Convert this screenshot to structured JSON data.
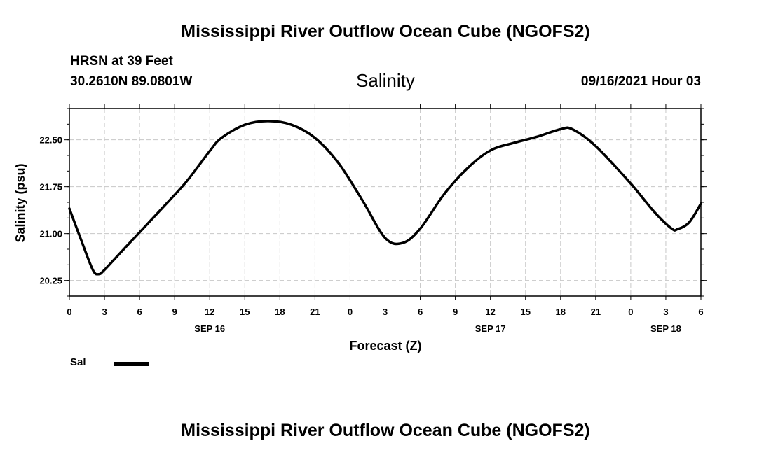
{
  "header": {
    "title_top": "Mississippi River Outflow Ocean Cube (NGOFS2)",
    "station": "HRSN at 39 Feet",
    "coords": "30.2610N  89.0801W",
    "variable": "Salinity",
    "timestamp": "09/16/2021 Hour 03",
    "title_bottom": "Mississippi River Outflow Ocean Cube (NGOFS2)"
  },
  "legend": {
    "label": "Sal",
    "color": "#000000"
  },
  "chart_data": {
    "type": "line",
    "title": "Salinity",
    "xlabel": "Forecast (Z)",
    "ylabel": "Salinity (psu)",
    "x_unit": "hours from SEP 16 00Z",
    "xlim": [
      0,
      54
    ],
    "ylim": [
      20.0,
      23.0
    ],
    "grid": true,
    "x_tick_values": [
      0,
      3,
      6,
      9,
      12,
      15,
      18,
      21,
      24,
      27,
      30,
      33,
      36,
      39,
      42,
      45,
      48,
      51,
      54
    ],
    "x_tick_labels": [
      "0",
      "3",
      "6",
      "9",
      "12",
      "15",
      "18",
      "21",
      "0",
      "3",
      "6",
      "9",
      "12",
      "15",
      "18",
      "21",
      "0",
      "3",
      "6"
    ],
    "date_labels": [
      {
        "hour": 12,
        "label": "SEP 16"
      },
      {
        "hour": 36,
        "label": "SEP 17"
      },
      {
        "hour": 51,
        "label": "SEP 18"
      }
    ],
    "y_tick_values": [
      20.25,
      21.0,
      21.75,
      22.5
    ],
    "y_tick_labels": [
      "20.25",
      "21.00",
      "21.75",
      "22.50"
    ],
    "series": [
      {
        "name": "Sal",
        "color": "#000000",
        "points": [
          [
            0,
            21.4
          ],
          [
            1,
            20.9
          ],
          [
            2,
            20.42
          ],
          [
            2.5,
            20.35
          ],
          [
            3,
            20.42
          ],
          [
            4.5,
            20.72
          ],
          [
            6,
            21.02
          ],
          [
            8,
            21.42
          ],
          [
            10,
            21.83
          ],
          [
            12,
            22.32
          ],
          [
            13,
            22.53
          ],
          [
            15,
            22.74
          ],
          [
            17,
            22.8
          ],
          [
            19,
            22.74
          ],
          [
            21,
            22.53
          ],
          [
            23,
            22.13
          ],
          [
            25,
            21.55
          ],
          [
            27,
            20.93
          ],
          [
            28.5,
            20.85
          ],
          [
            30,
            21.08
          ],
          [
            32,
            21.62
          ],
          [
            34,
            22.04
          ],
          [
            36,
            22.33
          ],
          [
            38,
            22.45
          ],
          [
            40,
            22.55
          ],
          [
            42,
            22.67
          ],
          [
            43,
            22.67
          ],
          [
            45,
            22.4
          ],
          [
            48,
            21.8
          ],
          [
            50,
            21.35
          ],
          [
            51.5,
            21.08
          ],
          [
            52,
            21.07
          ],
          [
            53,
            21.18
          ],
          [
            54,
            21.48
          ]
        ]
      }
    ]
  }
}
